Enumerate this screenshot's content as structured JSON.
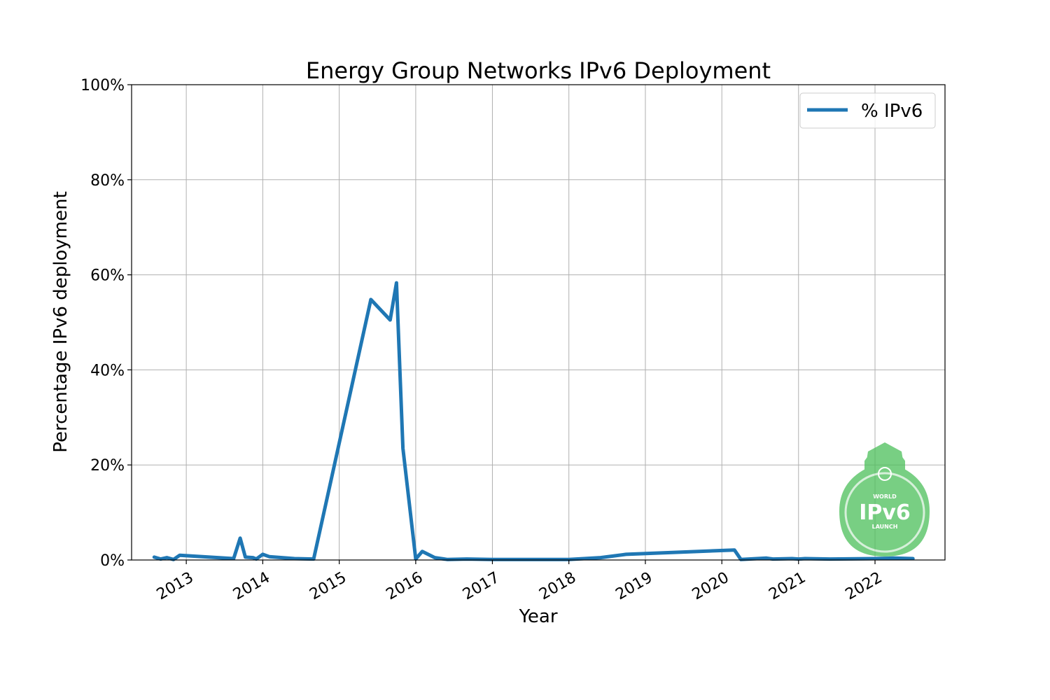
{
  "chart_data": {
    "type": "line",
    "title": "Energy Group Networks IPv6 Deployment",
    "xlabel": "Year",
    "ylabel": "Percentage IPv6 deployment",
    "ylim": [
      0,
      100
    ],
    "y_ticks": [
      "0%",
      "20%",
      "40%",
      "60%",
      "80%",
      "100%"
    ],
    "x_ticks": [
      "2013",
      "2014",
      "2015",
      "2016",
      "2017",
      "2018",
      "2019",
      "2020",
      "2021",
      "2022"
    ],
    "grid": true,
    "legend_position": "top-right",
    "series": [
      {
        "name": "% IPv6",
        "color": "#1f77b4",
        "points": [
          [
            "2012-08-01",
            0.6
          ],
          [
            "2012-09-01",
            0.2
          ],
          [
            "2012-10-01",
            0.5
          ],
          [
            "2012-11-01",
            0.1
          ],
          [
            "2012-12-01",
            1.0
          ],
          [
            "2013-08-15",
            0.3
          ],
          [
            "2013-09-15",
            4.6
          ],
          [
            "2013-10-10",
            0.6
          ],
          [
            "2013-11-15",
            0.5
          ],
          [
            "2013-12-01",
            0.2
          ],
          [
            "2014-01-01",
            1.2
          ],
          [
            "2014-02-01",
            0.7
          ],
          [
            "2014-06-01",
            0.3
          ],
          [
            "2014-09-01",
            0.2
          ],
          [
            "2015-06-01",
            54.8
          ],
          [
            "2015-09-01",
            50.5
          ],
          [
            "2015-10-01",
            58.3
          ],
          [
            "2015-11-01",
            23.5
          ],
          [
            "2016-01-01",
            0.2
          ],
          [
            "2016-02-01",
            1.8
          ],
          [
            "2016-04-01",
            0.5
          ],
          [
            "2016-06-01",
            0.1
          ],
          [
            "2016-09-01",
            0.2
          ],
          [
            "2017-01-01",
            0.1
          ],
          [
            "2018-01-01",
            0.1
          ],
          [
            "2018-06-01",
            0.5
          ],
          [
            "2018-10-01",
            1.2
          ],
          [
            "2020-03-01",
            2.1
          ],
          [
            "2020-04-01",
            0.1
          ],
          [
            "2020-08-01",
            0.4
          ],
          [
            "2020-09-01",
            0.2
          ],
          [
            "2020-12-01",
            0.3
          ],
          [
            "2021-01-01",
            0.2
          ],
          [
            "2021-02-01",
            0.3
          ],
          [
            "2021-06-01",
            0.2
          ],
          [
            "2022-01-01",
            0.3
          ],
          [
            "2022-04-01",
            0.4
          ],
          [
            "2022-07-01",
            0.3
          ]
        ]
      }
    ]
  },
  "watermark": {
    "top_text": "WORLD",
    "main_text": "IPv6",
    "bottom_text": "LAUNCH",
    "color": "#4cbf5a",
    "icon": "padlock-globe-icon"
  }
}
